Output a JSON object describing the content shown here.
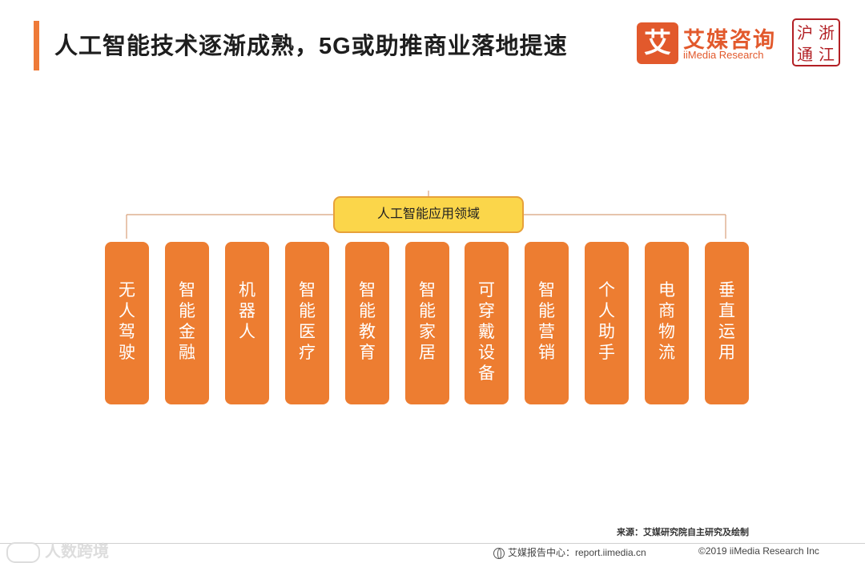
{
  "header": {
    "title": "人工智能技术逐渐成熟，5G或助推商业落地提速",
    "accent_color": "#ee7a38"
  },
  "logo": {
    "mark_char": "艾",
    "name_cn": "艾媒咨询",
    "name_en": "iiMedia Research",
    "color": "#e2592c",
    "seal_text": "沪浙通江"
  },
  "diagram": {
    "root": "人工智能应用领域",
    "root_color": "#fbd64a",
    "node_color": "#ed7d31",
    "nodes": [
      "无人驾驶",
      "智能金融",
      "机器人",
      "智能医疗",
      "智能教育",
      "智能家居",
      "可穿戴设备",
      "智能营销",
      "个人助手",
      "电商物流",
      "垂直运用"
    ]
  },
  "footer": {
    "source": "来源：艾媒研究院自主研究及绘制",
    "watermark": "人数跨境",
    "report_center": "艾媒报告中心：report.iimedia.cn",
    "copyright": "©2019  iiMedia Research Inc"
  }
}
